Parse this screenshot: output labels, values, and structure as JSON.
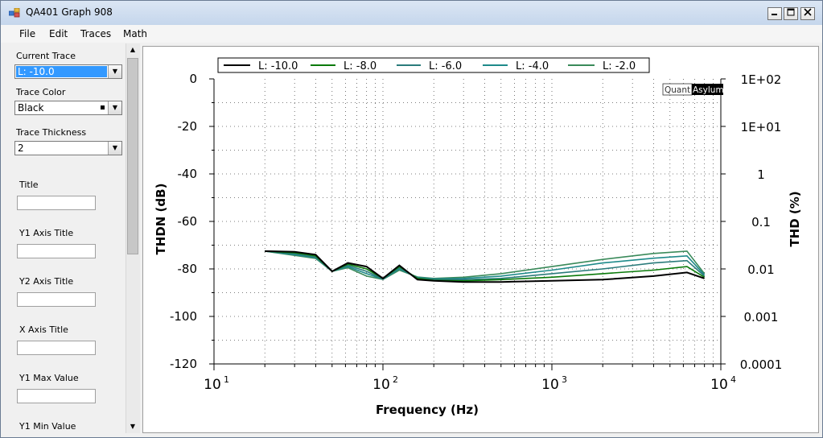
{
  "window": {
    "title": "QA401 Graph 908"
  },
  "menu": [
    "File",
    "Edit",
    "Traces",
    "Math"
  ],
  "panel": {
    "current_trace_label": "Current Trace",
    "current_trace_value": "L: -10.0",
    "trace_color_label": "Trace Color",
    "trace_color_value": "Black",
    "trace_thickness_label": "Trace Thickness",
    "trace_thickness_value": "2",
    "title_label": "Title",
    "y1_axis_title_label": "Y1 Axis Title",
    "y2_axis_title_label": "Y2 Axis Title",
    "x_axis_title_label": "X Axis Title",
    "y1_max_label": "Y1 Max Value",
    "y1_min_label": "Y1 Min Value"
  },
  "brand": {
    "part1": "Quant",
    "part2": "Asylum"
  },
  "chart_data": {
    "type": "line",
    "xlabel": "Frequency (Hz)",
    "ylabel": "THDN (dB)",
    "y2label": "THD (%)",
    "xscale": "log",
    "xlim": [
      10,
      10000
    ],
    "ylim": [
      -120,
      0
    ],
    "yticks": [
      0,
      -20,
      -40,
      -60,
      -80,
      -100,
      -120
    ],
    "y2ticks": [
      "1E+02",
      "1E+01",
      "1",
      "0.1",
      "0.01",
      "0.001",
      "0.0001"
    ],
    "xtick_labels": [
      {
        "base": "10",
        "exp": "1"
      },
      {
        "base": "10",
        "exp": "2"
      },
      {
        "base": "10",
        "exp": "3"
      },
      {
        "base": "10",
        "exp": "4"
      }
    ],
    "grid": true,
    "legend_position": "top",
    "x": [
      20,
      30,
      40,
      50,
      62,
      80,
      100,
      125,
      160,
      200,
      300,
      500,
      1000,
      2000,
      4000,
      6300,
      8000
    ],
    "series": [
      {
        "name": "L: -10.0",
        "color": "#000000",
        "values": [
          -72.5,
          -72.8,
          -74,
          -81,
          -77.5,
          -79,
          -84,
          -78.5,
          -84.5,
          -85,
          -85.5,
          -85.5,
          -85,
          -84.5,
          -83,
          -81.5,
          -84
        ]
      },
      {
        "name": "L: -8.0",
        "color": "#0a7a0a",
        "values": [
          -72.5,
          -73.2,
          -74.5,
          -81,
          -78,
          -80,
          -84,
          -79,
          -84,
          -84.8,
          -85,
          -84.5,
          -83.5,
          -82,
          -80.5,
          -79,
          -83.5
        ]
      },
      {
        "name": "L: -6.0",
        "color": "#2a7b7b",
        "values": [
          -72.5,
          -73.6,
          -75,
          -81,
          -78.5,
          -81,
          -84.2,
          -79.5,
          -83.8,
          -84.5,
          -84.5,
          -84,
          -82,
          -80,
          -77.5,
          -76.5,
          -83
        ]
      },
      {
        "name": "L: -4.0",
        "color": "#1e8a8a",
        "values": [
          -72.5,
          -74,
          -75.3,
          -81,
          -79,
          -82,
          -84.3,
          -80,
          -83.6,
          -84.2,
          -84,
          -83,
          -80.5,
          -77.5,
          -75.5,
          -74.5,
          -82.5
        ]
      },
      {
        "name": "L: -2.0",
        "color": "#3a8a5a",
        "values": [
          -72.5,
          -74.3,
          -75.6,
          -81,
          -79.5,
          -83,
          -84.4,
          -80.5,
          -83.4,
          -84,
          -83.5,
          -82,
          -79,
          -76,
          -73.5,
          -72.5,
          -82
        ]
      }
    ]
  }
}
